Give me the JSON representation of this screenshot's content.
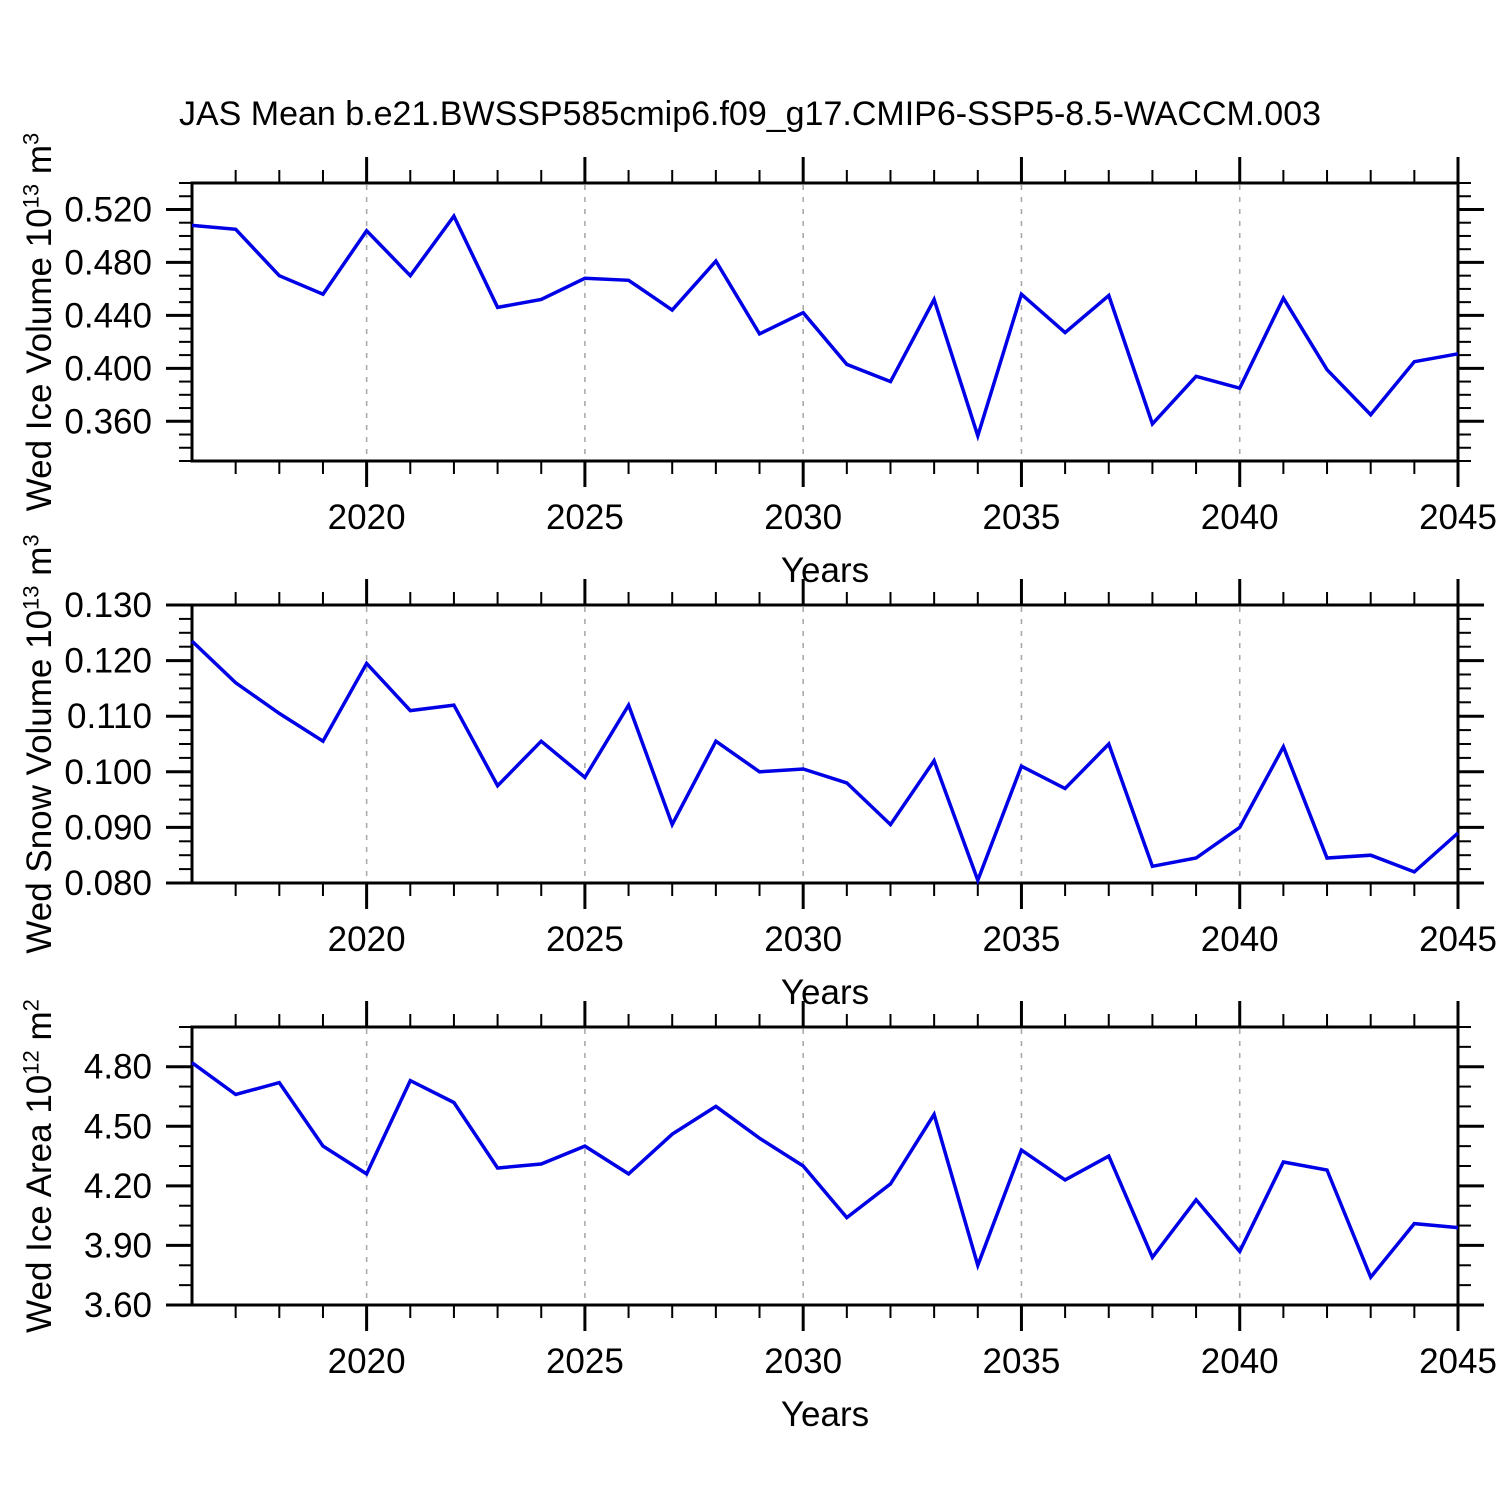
{
  "title": "JAS Mean b.e21.BWSSP585cmip6.f09_g17.CMIP6-SSP5-8.5-WACCM.003",
  "x_axis_label": "Years",
  "colors": {
    "line": "#0000E6",
    "axis": "#000000",
    "grid": "#AAAAAA",
    "background": "#FFFFFF"
  },
  "years": [
    2016,
    2017,
    2018,
    2019,
    2020,
    2021,
    2022,
    2023,
    2024,
    2025,
    2026,
    2027,
    2028,
    2029,
    2030,
    2031,
    2032,
    2033,
    2034,
    2035,
    2036,
    2037,
    2038,
    2039,
    2040,
    2041,
    2042,
    2043,
    2044,
    2045
  ],
  "x_major_ticks": [
    2020,
    2025,
    2030,
    2035,
    2040,
    2045
  ],
  "x_gridlines": [
    2020,
    2025,
    2030,
    2035,
    2040
  ],
  "chart_data": [
    {
      "type": "line",
      "title": "JAS Mean b.e21.BWSSP585cmip6.f09_g17.CMIP6-SSP5-8.5-WACCM.003",
      "xlabel": "Years",
      "ylabel": "Wed Ice Volume 10^13 m^3",
      "ylabel_parts": {
        "base": "Wed Ice Volume 10",
        "exp": "13",
        "unit": " m",
        "unit_exp": "3"
      },
      "x_range": [
        2016,
        2045
      ],
      "ylim": [
        0.33,
        0.54
      ],
      "ytick_values": [
        0.36,
        0.4,
        0.44,
        0.48,
        0.52
      ],
      "ytick_labels": [
        "0.360",
        "0.400",
        "0.440",
        "0.480",
        "0.520"
      ],
      "y_minor_step": 0.01,
      "grid": "vertical-dashed",
      "legend": "none",
      "values": [
        0.508,
        0.505,
        0.47,
        0.456,
        0.504,
        0.47,
        0.515,
        0.446,
        0.452,
        0.468,
        0.4665,
        0.444,
        0.481,
        0.426,
        0.442,
        0.403,
        0.39,
        0.452,
        0.349,
        0.456,
        0.427,
        0.455,
        0.358,
        0.394,
        0.385,
        0.453,
        0.399,
        0.365,
        0.405,
        0.411
      ]
    },
    {
      "type": "line",
      "title": "",
      "xlabel": "Years",
      "ylabel": "Wed Snow Volume 10^13 m^3",
      "ylabel_parts": {
        "base": "Wed Snow Volume 10",
        "exp": "13",
        "unit": " m",
        "unit_exp": "3"
      },
      "x_range": [
        2016,
        2045
      ],
      "ylim": [
        0.08,
        0.13
      ],
      "ytick_values": [
        0.08,
        0.09,
        0.1,
        0.11,
        0.12,
        0.13
      ],
      "ytick_labels": [
        "0.080",
        "0.090",
        "0.100",
        "0.110",
        "0.120",
        "0.130"
      ],
      "y_minor_step": 0.0025,
      "grid": "vertical-dashed",
      "legend": "none",
      "values": [
        0.1235,
        0.116,
        0.1105,
        0.1055,
        0.1195,
        0.111,
        0.112,
        0.0975,
        0.1055,
        0.099,
        0.112,
        0.0905,
        0.1055,
        0.1,
        0.1005,
        0.098,
        0.0905,
        0.102,
        0.0805,
        0.101,
        0.097,
        0.105,
        0.083,
        0.0845,
        0.09,
        0.1045,
        0.0845,
        0.085,
        0.082,
        0.089
      ]
    },
    {
      "type": "line",
      "title": "",
      "xlabel": "Years",
      "ylabel": "Wed Ice Area 10^12 m^2",
      "ylabel_parts": {
        "base": "Wed Ice Area 10",
        "exp": "12",
        "unit": " m",
        "unit_exp": "2"
      },
      "x_range": [
        2016,
        2045
      ],
      "ylim": [
        3.6,
        5.0
      ],
      "ytick_values": [
        3.6,
        3.9,
        4.2,
        4.5,
        4.8
      ],
      "ytick_labels": [
        "3.60",
        "3.90",
        "4.20",
        "4.50",
        "4.80"
      ],
      "y_minor_step": 0.1,
      "grid": "vertical-dashed",
      "legend": "none",
      "values": [
        4.82,
        4.66,
        4.72,
        4.4,
        4.26,
        4.73,
        4.62,
        4.29,
        4.31,
        4.4,
        4.26,
        4.46,
        4.6,
        4.44,
        4.3,
        4.04,
        4.21,
        4.56,
        3.8,
        4.38,
        4.23,
        4.35,
        3.84,
        4.13,
        3.87,
        4.32,
        4.28,
        3.74,
        4.01,
        3.99
      ]
    }
  ]
}
